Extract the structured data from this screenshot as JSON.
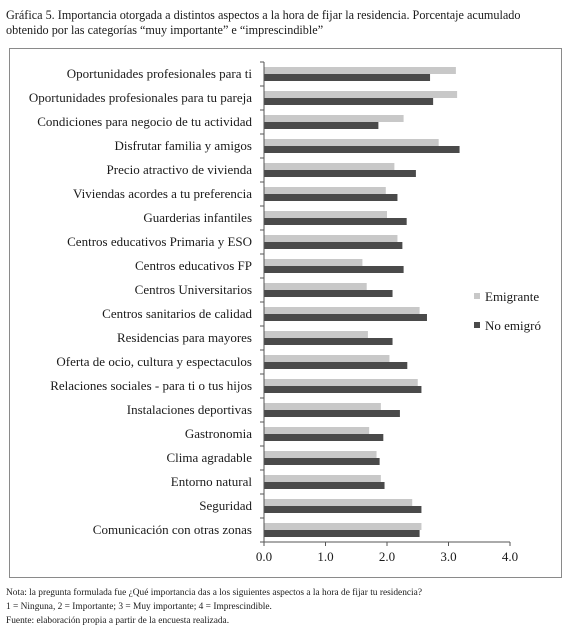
{
  "title": "Gráfica 5. Importancia otorgada a distintos aspectos a la hora de fijar la residencia. Porcentaje acumulado obtenido por las categorías “muy importante” e “imprescindible”",
  "notes": [
    "Nota: la pregunta formulada fue ¿Qué importancia das a los siguientes aspectos a la hora de fijar tu residencia?",
    "1 = Ninguna, 2 = Importante; 3 = Muy importante; 4 = Imprescindible.",
    "Fuente: elaboración propia a partir de la encuesta realizada."
  ],
  "colors": {
    "Emigrante": "#c8c8c8",
    "No emigró": "#4a4a4a",
    "axis": "#555555"
  },
  "chart_data": {
    "type": "bar",
    "orientation": "horizontal",
    "categories": [
      "Oportunidades profesionales para ti",
      "Oportunidades profesionales para tu pareja",
      "Condiciones para negocio de tu actividad",
      "Disfrutar familia y amigos",
      "Precio atractivo de vivienda",
      "Viviendas acordes a tu preferencia",
      "Guarderias infantiles",
      "Centros educativos Primaria y ESO",
      "Centros educativos FP",
      "Centros Universitarios",
      "Centros sanitarios de calidad",
      "Residencias para mayores",
      "Oferta de ocio, cultura y espectaculos",
      "Relaciones sociales - para ti o tus hijos",
      "Instalaciones deportivas",
      "Gastronomia",
      "Clima agradable",
      "Entorno natural",
      "Seguridad",
      "Comunicación con otras zonas"
    ],
    "series": [
      {
        "name": "Emigrante",
        "values": [
          3.12,
          3.14,
          2.27,
          2.84,
          2.12,
          1.98,
          2.0,
          2.17,
          1.6,
          1.67,
          2.53,
          1.69,
          2.04,
          2.5,
          1.9,
          1.71,
          1.83,
          1.9,
          2.41,
          2.56
        ]
      },
      {
        "name": "No emigró",
        "values": [
          2.7,
          2.75,
          1.86,
          3.18,
          2.47,
          2.17,
          2.32,
          2.25,
          2.27,
          2.09,
          2.65,
          2.09,
          2.33,
          2.56,
          2.21,
          1.94,
          1.88,
          1.96,
          2.56,
          2.53
        ]
      }
    ],
    "xlim": [
      0,
      4
    ],
    "xticks": [
      "0.0",
      "1.0",
      "2.0",
      "3.0",
      "4.0"
    ],
    "grid": false,
    "legend": "right"
  }
}
